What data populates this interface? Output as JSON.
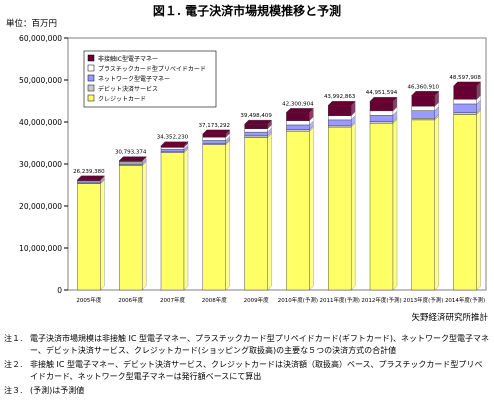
{
  "header": {
    "title": "図１. 電子決済市場規模推移と予測",
    "unit": "単位：百万円"
  },
  "source": "矢野経済研究所推計",
  "notes": [
    {
      "label": "注１.",
      "text": "電子決済市場規模は非接触 IC 型電子マネー、プラスチックカード型プリペイドカード(ギフトカード)、ネットワーク型電子マネー、デビット決済サービス、クレジットカード(ショッピング取扱高)の主要な５つの決済方式の合計値"
    },
    {
      "label": "注２.",
      "text": "非接触 IC 型電子マネー、デビット決済サービス、クレジットカードは決済額（取扱高）ベース、プラスチックカード型プリペイドカード、ネットワーク型電子マネーは発行額ベースにて算出"
    },
    {
      "label": "注３.",
      "text": "(予測)は予測値"
    }
  ],
  "chart_data": {
    "type": "bar",
    "stacked": true,
    "categories": [
      "2005年度",
      "2006年度",
      "2007年度",
      "2008年度",
      "2009年度",
      "2010年度(予測)",
      "2011年度(予測)",
      "2012年度(予測)",
      "2013年度(予測)",
      "2014年度(予測)"
    ],
    "totals_labels": [
      "26,239,380",
      "30,793,374",
      "34,352,230",
      "37,173,292",
      "39,498,409",
      "42,300,904",
      "43,992,863",
      "44,951,594",
      "46,360,910",
      "48,597,908"
    ],
    "series": [
      {
        "name": "クレジットカード",
        "color": "#ffff66",
        "values": [
          25300000,
          29600000,
          32700000,
          34600000,
          36300000,
          37800000,
          38800000,
          39700000,
          40500000,
          41800000
        ]
      },
      {
        "name": "デビット決済サービス",
        "color": "#cccccc",
        "values": [
          200000,
          300000,
          300000,
          300000,
          400000,
          400000,
          400000,
          400000,
          400000,
          400000
        ]
      },
      {
        "name": "ネットワーク型電子マネー",
        "color": "#9999ff",
        "values": [
          300000,
          400000,
          500000,
          700000,
          900000,
          1100000,
          1300000,
          1500000,
          1800000,
          2100000
        ]
      },
      {
        "name": "プラスチックカード型プリペイドカード",
        "color": "#ffffff",
        "values": [
          239380,
          293374,
          452230,
          773292,
          798409,
          1000904,
          992863,
          1051594,
          1060910,
          1097908
        ]
      },
      {
        "name": "非接触IC型電子マネー",
        "color": "#660033",
        "values": [
          200000,
          200000,
          400000,
          800000,
          1100000,
          2000000,
          2500000,
          2300000,
          2600000,
          3200000
        ]
      }
    ],
    "ylim": [
      0,
      60000000
    ],
    "yticks": [
      "0",
      "10,000,000",
      "20,000,000",
      "30,000,000",
      "40,000,000",
      "50,000,000",
      "60,000,000"
    ],
    "grid": false,
    "legend_position": "top-left"
  }
}
